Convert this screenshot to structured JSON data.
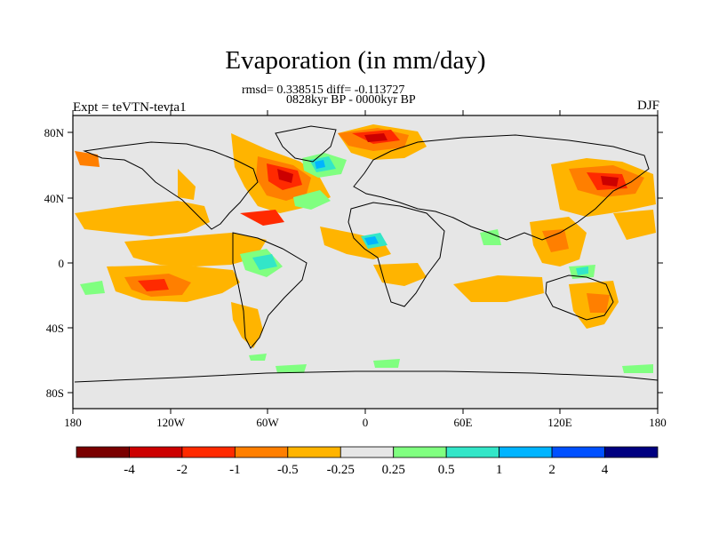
{
  "title": "Evaporation (in mm/day)",
  "subtitle_line1": "rmsd= 0.338515 diff= -0.113727",
  "subtitle_line2": "0828kyr BP - 0000kyr BP",
  "left_header": "Expt = teVTN-tevta1",
  "right_header": "DJF",
  "axes": {
    "x_ticks": [
      "180",
      "120W",
      "60W",
      "0",
      "60E",
      "120E",
      "180"
    ],
    "y_ticks": [
      "80N",
      "40N",
      "0",
      "40S",
      "80S"
    ]
  },
  "colorbar": {
    "labels": [
      "-4",
      "-2",
      "-1",
      "-0.5",
      "-0.25",
      "0.25",
      "0.5",
      "1",
      "2",
      "4"
    ],
    "colors": [
      "#7a0000",
      "#cc0000",
      "#ff2a00",
      "#ff7f00",
      "#ffb400",
      "#e6e6e6",
      "#80ff80",
      "#33e6c8",
      "#00b4ff",
      "#0050ff",
      "#000080"
    ]
  },
  "colors": {
    "land_background": "#e6e6e6",
    "coastline": "#000000"
  }
}
